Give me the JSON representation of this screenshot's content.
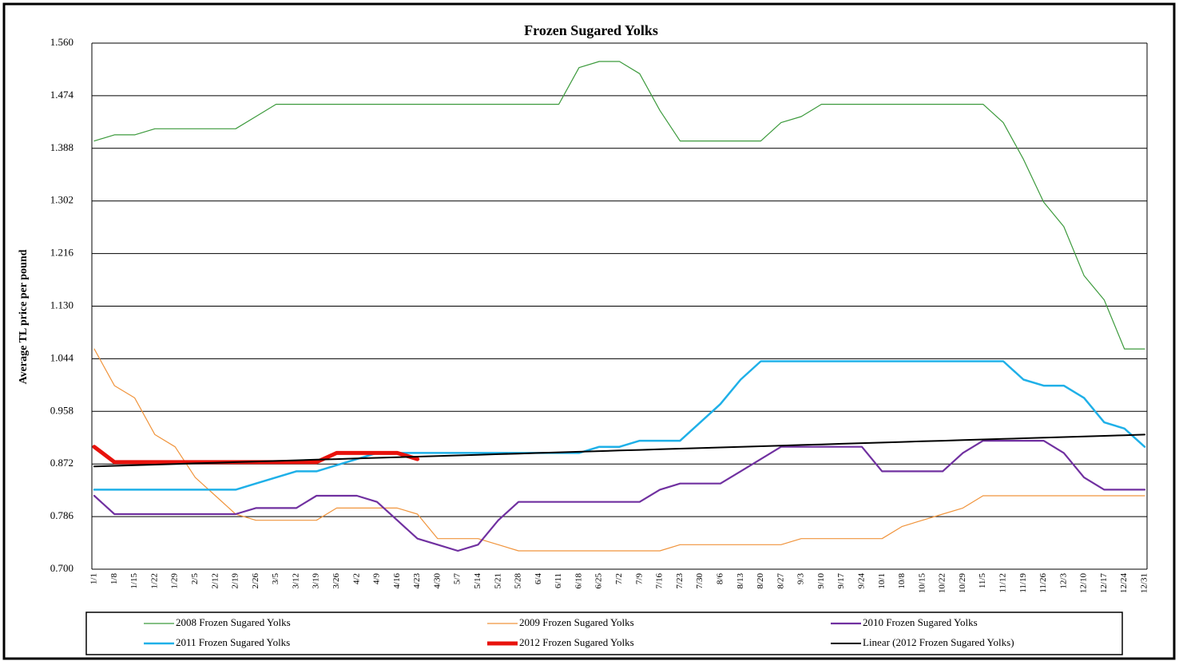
{
  "chart_data": {
    "type": "line",
    "title": "Frozen Sugared Yolks",
    "y_label": "Average TL price per pound",
    "categories": [
      "1/1",
      "1/8",
      "1/15",
      "1/22",
      "1/29",
      "2/5",
      "2/12",
      "2/19",
      "2/26",
      "3/5",
      "3/12",
      "3/19",
      "3/26",
      "4/2",
      "4/9",
      "4/16",
      "4/23",
      "4/30",
      "5/7",
      "5/14",
      "5/21",
      "5/28",
      "6/4",
      "6/11",
      "6/18",
      "6/25",
      "7/2",
      "7/9",
      "7/16",
      "7/23",
      "7/30",
      "8/6",
      "8/13",
      "8/20",
      "8/27",
      "9/3",
      "9/10",
      "9/17",
      "9/24",
      "10/1",
      "10/8",
      "10/15",
      "10/22",
      "10/29",
      "11/5",
      "11/12",
      "11/19",
      "11/26",
      "12/3",
      "12/10",
      "12/17",
      "12/24",
      "12/31"
    ],
    "ylim": [
      0.7,
      1.56
    ],
    "yticks": [
      {
        "value": 0.7,
        "label": "0.700"
      },
      0.786,
      0.872,
      0.958,
      1.044,
      {
        "value": 1.13,
        "label": "1.130"
      },
      1.216,
      1.302,
      1.388,
      1.474,
      {
        "value": 1.56,
        "label": "1.560"
      }
    ],
    "grid": true,
    "legend": "bottom",
    "series": [
      {
        "name": "2008 Frozen Sugared Yolks",
        "color": "#3c9a3c",
        "width": 1.2,
        "values": [
          1.4,
          1.41,
          1.41,
          1.42,
          1.42,
          1.42,
          1.42,
          1.42,
          1.44,
          1.46,
          1.46,
          1.46,
          1.46,
          1.46,
          1.46,
          1.46,
          1.46,
          1.46,
          1.46,
          1.46,
          1.46,
          1.46,
          1.46,
          1.46,
          1.52,
          1.53,
          1.53,
          1.51,
          1.45,
          1.4,
          1.4,
          1.4,
          1.4,
          1.4,
          1.43,
          1.44,
          1.46,
          1.46,
          1.46,
          1.46,
          1.46,
          1.46,
          1.46,
          1.46,
          1.46,
          1.43,
          1.37,
          1.3,
          1.26,
          1.18,
          1.14,
          1.06,
          1.06
        ]
      },
      {
        "name": "2009 Frozen Sugared Yolks",
        "color": "#f0943c",
        "width": 1.2,
        "values": [
          1.06,
          1.0,
          0.98,
          0.92,
          0.9,
          0.85,
          0.82,
          0.79,
          0.78,
          0.78,
          0.78,
          0.78,
          0.8,
          0.8,
          0.8,
          0.8,
          0.79,
          0.75,
          0.75,
          0.75,
          0.74,
          0.73,
          0.73,
          0.73,
          0.73,
          0.73,
          0.73,
          0.73,
          0.73,
          0.74,
          0.74,
          0.74,
          0.74,
          0.74,
          0.74,
          0.75,
          0.75,
          0.75,
          0.75,
          0.75,
          0.77,
          0.78,
          0.79,
          0.8,
          0.82,
          0.82,
          0.82,
          0.82,
          0.82,
          0.82,
          0.82,
          0.82,
          0.82
        ]
      },
      {
        "name": "2010 Frozen Sugared Yolks",
        "color": "#7030a0",
        "width": 2.2,
        "values": [
          0.82,
          0.79,
          0.79,
          0.79,
          0.79,
          0.79,
          0.79,
          0.79,
          0.8,
          0.8,
          0.8,
          0.82,
          0.82,
          0.82,
          0.81,
          0.78,
          0.75,
          0.74,
          0.73,
          0.74,
          0.78,
          0.81,
          0.81,
          0.81,
          0.81,
          0.81,
          0.81,
          0.81,
          0.83,
          0.84,
          0.84,
          0.84,
          0.86,
          0.88,
          0.9,
          0.9,
          0.9,
          0.9,
          0.9,
          0.86,
          0.86,
          0.86,
          0.86,
          0.89,
          0.91,
          0.91,
          0.91,
          0.91,
          0.89,
          0.85,
          0.83,
          0.83,
          0.83
        ]
      },
      {
        "name": "2011 Frozen Sugared Yolks",
        "color": "#1fb0e8",
        "width": 2.5,
        "values": [
          0.83,
          0.83,
          0.83,
          0.83,
          0.83,
          0.83,
          0.83,
          0.83,
          0.84,
          0.85,
          0.86,
          0.86,
          0.87,
          0.88,
          0.89,
          0.89,
          0.89,
          0.89,
          0.89,
          0.89,
          0.89,
          0.89,
          0.89,
          0.89,
          0.89,
          0.9,
          0.9,
          0.91,
          0.91,
          0.91,
          0.94,
          0.97,
          1.01,
          1.04,
          1.04,
          1.04,
          1.04,
          1.04,
          1.04,
          1.04,
          1.04,
          1.04,
          1.04,
          1.04,
          1.04,
          1.04,
          1.01,
          1.0,
          1.0,
          0.98,
          0.94,
          0.93,
          0.9
        ]
      },
      {
        "name": "2012 Frozen Sugared Yolks",
        "color": "#e8120c",
        "width": 5,
        "values": [
          0.9,
          0.875,
          0.875,
          0.875,
          0.875,
          0.875,
          0.875,
          0.875,
          0.875,
          0.875,
          0.875,
          0.875,
          0.89,
          0.89,
          0.89,
          0.89,
          0.88,
          null,
          null,
          null,
          null,
          null,
          null,
          null,
          null,
          null,
          null,
          null,
          null,
          null,
          null,
          null,
          null,
          null,
          null,
          null,
          null,
          null,
          null,
          null,
          null,
          null,
          null,
          null,
          null,
          null,
          null,
          null,
          null,
          null,
          null,
          null,
          null
        ]
      },
      {
        "name": "Linear (2012 Frozen Sugared Yolks)",
        "color": "#000000",
        "width": 2,
        "values": [
          0.868,
          0.869,
          0.87,
          0.871,
          0.872,
          0.873,
          0.874,
          0.875,
          0.876,
          0.877,
          0.878,
          0.879,
          0.88,
          0.881,
          0.882,
          0.883,
          0.884,
          0.885,
          0.886,
          0.887,
          0.888,
          0.889,
          0.89,
          0.891,
          0.892,
          0.893,
          0.894,
          0.895,
          0.896,
          0.897,
          0.898,
          0.899,
          0.9,
          0.901,
          0.902,
          0.903,
          0.904,
          0.905,
          0.906,
          0.907,
          0.908,
          0.909,
          0.91,
          0.911,
          0.912,
          0.913,
          0.914,
          0.915,
          0.916,
          0.917,
          0.918,
          0.919,
          0.92
        ]
      }
    ]
  }
}
